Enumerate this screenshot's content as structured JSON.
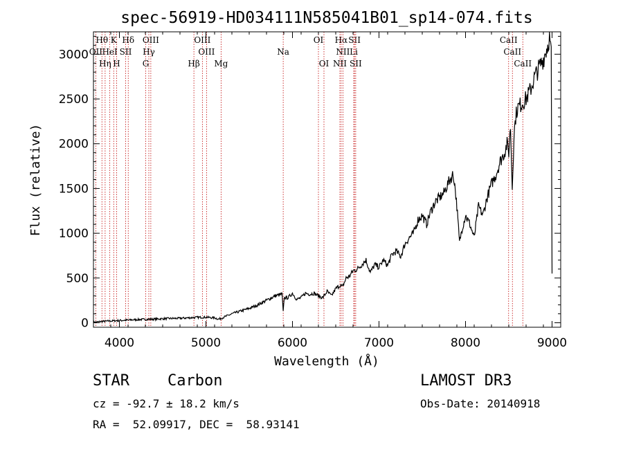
{
  "chart_data": {
    "type": "line",
    "title": "spec-56919-HD034111N585041B01_sp14-074.fits",
    "xlabel": "Wavelength (Å)",
    "ylabel": "Flux (relative)",
    "xlim": [
      3700,
      9100
    ],
    "ylim": [
      -50,
      3250
    ],
    "xticks": [
      4000,
      5000,
      6000,
      7000,
      8000,
      9000
    ],
    "yticks": [
      0,
      500,
      1000,
      1500,
      2000,
      2500,
      3000
    ],
    "series": [
      {
        "name": "flux",
        "x": [
          3700,
          3800,
          3900,
          4000,
          4100,
          4200,
          4300,
          4400,
          4500,
          4600,
          4700,
          4800,
          4850,
          4900,
          5000,
          5050,
          5100,
          5150,
          5190,
          5250,
          5300,
          5400,
          5500,
          5600,
          5700,
          5800,
          5880,
          5893,
          5905,
          5950,
          6000,
          6050,
          6100,
          6150,
          6200,
          6250,
          6300,
          6350,
          6400,
          6450,
          6500,
          6550,
          6580,
          6620,
          6660,
          6700,
          6750,
          6800,
          6850,
          6900,
          6950,
          7000,
          7050,
          7100,
          7150,
          7200,
          7250,
          7300,
          7350,
          7400,
          7450,
          7500,
          7550,
          7600,
          7650,
          7700,
          7750,
          7800,
          7850,
          7870,
          7900,
          7930,
          7960,
          8000,
          8050,
          8100,
          8150,
          8200,
          8250,
          8300,
          8350,
          8400,
          8450,
          8480,
          8500,
          8520,
          8540,
          8560,
          8580,
          8600,
          8650,
          8700,
          8750,
          8800,
          8850,
          8900,
          8950,
          8970,
          8990,
          9000
        ],
        "values": [
          5,
          15,
          20,
          25,
          30,
          35,
          38,
          40,
          45,
          48,
          50,
          55,
          58,
          60,
          62,
          58,
          55,
          40,
          55,
          80,
          100,
          130,
          160,
          200,
          250,
          300,
          320,
          120,
          280,
          280,
          330,
          260,
          280,
          330,
          320,
          330,
          300,
          280,
          350,
          300,
          380,
          420,
          400,
          500,
          520,
          580,
          600,
          650,
          700,
          560,
          650,
          620,
          700,
          640,
          760,
          800,
          740,
          880,
          950,
          1000,
          1150,
          1200,
          1100,
          1250,
          1350,
          1400,
          1450,
          1560,
          1650,
          1600,
          1300,
          900,
          1050,
          1200,
          1100,
          950,
          1300,
          1200,
          1400,
          1550,
          1650,
          1800,
          1900,
          2000,
          1900,
          2200,
          1500,
          2100,
          2300,
          2400,
          2450,
          2500,
          2600,
          2750,
          2850,
          2950,
          3100,
          3200,
          3000,
          550
        ]
      }
    ],
    "spectral_lines": [
      {
        "label": "Hθ",
        "wavelength": 3798,
        "row": 1
      },
      {
        "label": "K",
        "wavelength": 3934,
        "row": 1
      },
      {
        "label": "Hδ",
        "wavelength": 4102,
        "row": 1
      },
      {
        "label": "OIII",
        "wavelength": 4363,
        "row": 1
      },
      {
        "label": "OIII",
        "wavelength": 4959,
        "row": 1
      },
      {
        "label": "OI",
        "wavelength": 6300,
        "row": 1
      },
      {
        "label": "Hα",
        "wavelength": 6563,
        "row": 1
      },
      {
        "label": "SII",
        "wavelength": 6717,
        "row": 1
      },
      {
        "label": "CaII",
        "wavelength": 8498,
        "row": 1
      },
      {
        "label": "OII",
        "wavelength": 3727,
        "row": 2
      },
      {
        "label": "HeI",
        "wavelength": 3889,
        "row": 2
      },
      {
        "label": "SII",
        "wavelength": 4072,
        "row": 2
      },
      {
        "label": "Hγ",
        "wavelength": 4340,
        "row": 2
      },
      {
        "label": "OIII",
        "wavelength": 5007,
        "row": 2
      },
      {
        "label": "Na",
        "wavelength": 5893,
        "row": 2
      },
      {
        "label": "NII",
        "wavelength": 6583,
        "row": 2
      },
      {
        "label": "Li",
        "wavelength": 6708,
        "row": 2
      },
      {
        "label": "CaII",
        "wavelength": 8542,
        "row": 2
      },
      {
        "label": "Hη",
        "wavelength": 3835,
        "row": 3
      },
      {
        "label": "H",
        "wavelength": 3968,
        "row": 3
      },
      {
        "label": "G",
        "wavelength": 4304,
        "row": 3
      },
      {
        "label": "Hβ",
        "wavelength": 4861,
        "row": 3
      },
      {
        "label": "Mg",
        "wavelength": 5175,
        "row": 3
      },
      {
        "label": "OI",
        "wavelength": 6364,
        "row": 3
      },
      {
        "label": "NII",
        "wavelength": 6548,
        "row": 3
      },
      {
        "label": "SII",
        "wavelength": 6731,
        "row": 3
      },
      {
        "label": "CaII",
        "wavelength": 8662,
        "row": 3
      }
    ]
  },
  "info": {
    "class_label": "STAR",
    "subclass_label": "Carbon",
    "survey": "LAMOST DR3",
    "redshift": "cz = -92.7 ± 18.2 km/s",
    "obs_date": "Obs-Date: 20140918",
    "coords": "RA =  52.09917, DEC =  58.93141"
  },
  "colors": {
    "line": "#000000",
    "marker": "#c00000",
    "axis": "#000000"
  }
}
